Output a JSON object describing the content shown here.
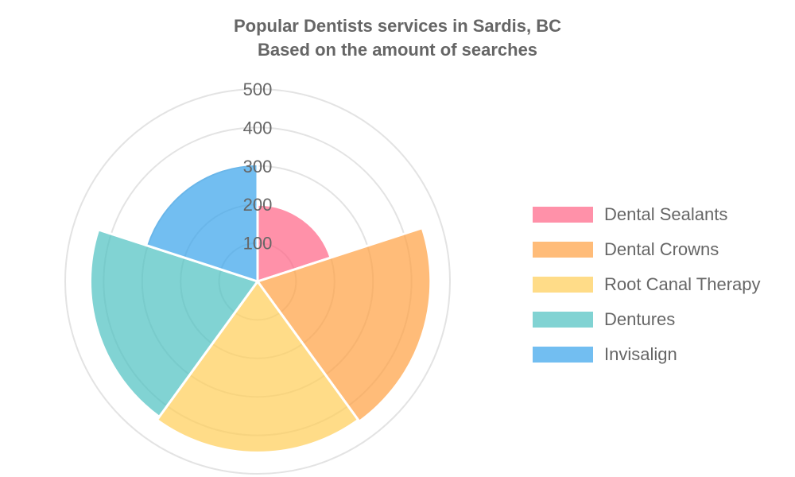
{
  "chart_data": {
    "type": "polarArea",
    "title": "Popular Dentists services in Sardis, BC",
    "subtitle": "Based on the amount of searches",
    "categories": [
      "Dental Sealants",
      "Dental Crowns",
      "Root Canal Therapy",
      "Dentures",
      "Invisalign"
    ],
    "values": [
      200,
      450,
      445,
      435,
      305
    ],
    "colors": [
      "#ff6384",
      "#ff9f40",
      "#ffcd56",
      "#4bc0c0",
      "#36a2eb"
    ],
    "rticks": [
      "100",
      "200",
      "300",
      "400",
      "500"
    ],
    "rlim": [
      0,
      500
    ],
    "legend_position": "right"
  }
}
